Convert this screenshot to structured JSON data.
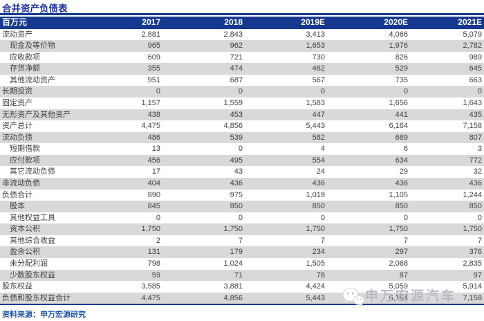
{
  "page": {
    "title": "合并资产负债表",
    "source_note": "资料来源：申万宏源研究"
  },
  "colors": {
    "header_navy": "#16398F",
    "title_blue": "#1D2F9E",
    "footer_blue": "#1C55A8",
    "row_shading_gray": "#D9D9D9",
    "body_text": "#3F3F3F",
    "watermark_gray": "#B2B5BE"
  },
  "watermark": {
    "icon": "wechat-icon",
    "text": "申万宏源汽车"
  },
  "table": {
    "unit_header": "百万元",
    "columns": [
      "2017",
      "2018",
      "2019E",
      "2020E",
      "2021E"
    ],
    "rows": [
      {
        "label": "流动资产",
        "indent": false,
        "values": [
          "2,881",
          "2,843",
          "3,413",
          "4,066",
          "5,079"
        ]
      },
      {
        "label": "现金及等价物",
        "indent": true,
        "values": [
          "965",
          "962",
          "1,653",
          "1,976",
          "2,782"
        ]
      },
      {
        "label": "应收款项",
        "indent": true,
        "values": [
          "609",
          "721",
          "730",
          "826",
          "989"
        ]
      },
      {
        "label": "存货净额",
        "indent": true,
        "values": [
          "355",
          "474",
          "462",
          "529",
          "645"
        ]
      },
      {
        "label": "其他流动资产",
        "indent": true,
        "values": [
          "951",
          "687",
          "567",
          "735",
          "663"
        ]
      },
      {
        "label": "长期投资",
        "indent": false,
        "values": [
          "0",
          "0",
          "0",
          "0",
          "0"
        ]
      },
      {
        "label": "固定资产",
        "indent": false,
        "values": [
          "1,157",
          "1,559",
          "1,583",
          "1,656",
          "1,643"
        ]
      },
      {
        "label": "无形资产及其他资产",
        "indent": false,
        "values": [
          "438",
          "453",
          "447",
          "441",
          "435"
        ]
      },
      {
        "label": "资产总计",
        "indent": false,
        "values": [
          "4,475",
          "4,856",
          "5,443",
          "6,164",
          "7,158"
        ]
      },
      {
        "label": "流动负债",
        "indent": false,
        "values": [
          "486",
          "539",
          "582",
          "669",
          "807"
        ]
      },
      {
        "label": "短期借款",
        "indent": true,
        "values": [
          "13",
          "0",
          "4",
          "6",
          "3"
        ]
      },
      {
        "label": "应付款项",
        "indent": true,
        "values": [
          "456",
          "495",
          "554",
          "634",
          "772"
        ]
      },
      {
        "label": "其它流动负债",
        "indent": true,
        "values": [
          "17",
          "43",
          "24",
          "29",
          "32"
        ]
      },
      {
        "label": "非流动负债",
        "indent": false,
        "values": [
          "404",
          "436",
          "436",
          "436",
          "436"
        ]
      },
      {
        "label": "负债合计",
        "indent": false,
        "values": [
          "890",
          "975",
          "1,019",
          "1,105",
          "1,244"
        ]
      },
      {
        "label": "股本",
        "indent": true,
        "values": [
          "845",
          "850",
          "850",
          "850",
          "850"
        ]
      },
      {
        "label": "其他权益工具",
        "indent": true,
        "values": [
          "0",
          "0",
          "0",
          "0",
          "0"
        ]
      },
      {
        "label": "资本公积",
        "indent": true,
        "values": [
          "1,750",
          "1,750",
          "1,750",
          "1,750",
          "1,750"
        ]
      },
      {
        "label": "其他综合收益",
        "indent": true,
        "values": [
          "2",
          "7",
          "7",
          "7",
          "7"
        ]
      },
      {
        "label": "盈余公积",
        "indent": true,
        "values": [
          "131",
          "179",
          "234",
          "297",
          "376"
        ]
      },
      {
        "label": "未分配利润",
        "indent": true,
        "values": [
          "798",
          "1,024",
          "1,505",
          "2,068",
          "2,835"
        ]
      },
      {
        "label": "少数股东权益",
        "indent": true,
        "values": [
          "59",
          "71",
          "78",
          "87",
          "97"
        ]
      },
      {
        "label": "股东权益",
        "indent": false,
        "values": [
          "3,585",
          "3,881",
          "4,424",
          "5,059",
          "5,914"
        ]
      },
      {
        "label": "负债和股东权益合计",
        "indent": false,
        "values": [
          "4,475",
          "4,856",
          "5,443",
          "6,164",
          "7,158"
        ]
      }
    ]
  }
}
